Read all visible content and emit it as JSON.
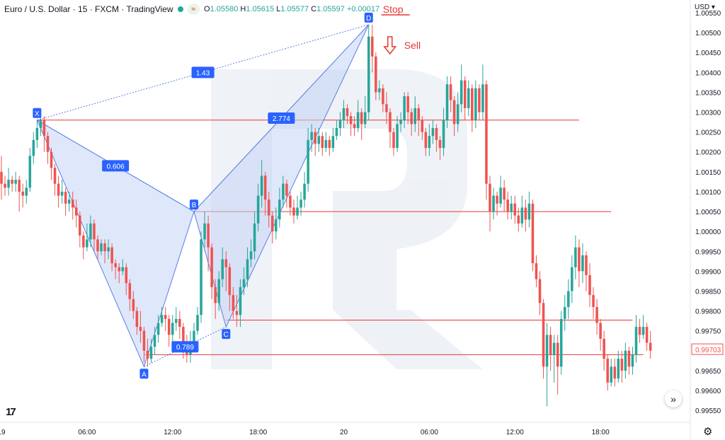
{
  "header": {
    "symbol": "Euro / U.S. Dollar · 15 · FXCM · TradingView",
    "open_label": "O",
    "open": "1.05580",
    "high_label": "H",
    "high": "1.05615",
    "low_label": "L",
    "low": "1.05577",
    "close_label": "C",
    "close": "1.05597",
    "change": "+0.00017"
  },
  "currency_menu": "USD ▾",
  "colors": {
    "up": "#26a69a",
    "down": "#ef5350",
    "pattern_fill": "#c5d3f5",
    "pattern_stroke": "#5a7fe6",
    "label_bg": "#2962ff",
    "level_line": "#e53935",
    "price_tag": "#ef5350"
  },
  "icons": {
    "logo": "tradingview-logo-icon",
    "jump": "jump-to-realtime-icon",
    "settings": "gear-icon",
    "sell_arrow": "arrow-down-icon"
  },
  "chart_data": {
    "type": "candlestick",
    "y_axis": {
      "ylim": [
        0.9952,
        1.0055
      ],
      "ticks": [
        "1.00550",
        "1.00500",
        "1.00450",
        "1.00400",
        "1.00350",
        "1.00300",
        "1.00250",
        "1.00200",
        "1.00150",
        "1.00100",
        "1.00050",
        "1.00000",
        "0.99950",
        "0.99900",
        "0.99850",
        "0.99800",
        "0.99750",
        "0.99700",
        "0.99650",
        "0.99600",
        "0.99550"
      ],
      "last_price": "0.99703"
    },
    "x_axis": {
      "ticks": [
        {
          "label": "19",
          "t": 0
        },
        {
          "label": "06:00",
          "t": 24
        },
        {
          "label": "12:00",
          "t": 48
        },
        {
          "label": "18:00",
          "t": 72
        },
        {
          "label": "20",
          "t": 96
        },
        {
          "label": "06:00",
          "t": 120
        },
        {
          "label": "12:00",
          "t": 144
        },
        {
          "label": "18:00",
          "t": 168
        }
      ],
      "range": [
        0,
        192
      ]
    },
    "candles": [
      [
        1.0015,
        1.0012,
        1.0019,
        1.0008
      ],
      [
        1.0012,
        1.0011,
        1.0014,
        1.0009
      ],
      [
        1.0011,
        1.0013,
        1.0016,
        1.0009
      ],
      [
        1.0013,
        1.0012,
        1.0014,
        1.001
      ],
      [
        1.0012,
        1.0013,
        1.0015,
        1.001
      ],
      [
        1.0013,
        1.001,
        1.0014,
        1.0005
      ],
      [
        1.001,
        1.0009,
        1.0012,
        1.0006
      ],
      [
        1.0009,
        1.0011,
        1.0013,
        1.0007
      ],
      [
        1.0011,
        1.0019,
        1.0021,
        1.001
      ],
      [
        1.0019,
        1.0023,
        1.0025,
        1.0017
      ],
      [
        1.0023,
        1.0026,
        1.0028,
        1.0021
      ],
      [
        1.0026,
        1.0028,
        1.0029,
        1.0024
      ],
      [
        1.0028,
        1.0024,
        1.0029,
        1.002
      ],
      [
        1.0024,
        1.002,
        1.0025,
        1.0017
      ],
      [
        1.002,
        1.0016,
        1.0021,
        1.0013
      ],
      [
        1.0016,
        1.0012,
        1.0017,
        1.0009
      ],
      [
        1.0012,
        1.0009,
        1.0014,
        1.0006
      ],
      [
        1.0009,
        1.001,
        1.0013,
        1.0007
      ],
      [
        1.001,
        1.0007,
        1.0011,
        1.0004
      ],
      [
        1.0007,
        1.0008,
        1.001,
        1.0005
      ],
      [
        1.0008,
        1.0006,
        1.001,
        1.0003
      ],
      [
        1.0006,
        1.0004,
        1.0008,
        1.0001
      ],
      [
        1.0004,
        0.9999,
        1.0005,
        0.9996
      ],
      [
        0.9999,
        0.9996,
        1.0,
        0.9993
      ],
      [
        0.9996,
        0.9998,
        1.0002,
        0.9995
      ],
      [
        0.9998,
        1.0002,
        1.0004,
        0.9996
      ],
      [
        1.0002,
        0.9998,
        1.0003,
        0.9995
      ],
      [
        0.9998,
        0.9995,
        0.9999,
        0.9993
      ],
      [
        0.9995,
        0.9997,
        0.9998,
        0.9994
      ],
      [
        0.9997,
        0.9995,
        0.9998,
        0.9992
      ],
      [
        0.9995,
        0.9996,
        0.9998,
        0.9993
      ],
      [
        0.9996,
        0.9992,
        0.9997,
        0.999
      ],
      [
        0.9992,
        0.9991,
        0.9993,
        0.9988
      ],
      [
        0.9991,
        0.999,
        0.9992,
        0.9987
      ],
      [
        0.999,
        0.9991,
        0.9993,
        0.9989
      ],
      [
        0.9991,
        0.9987,
        0.9992,
        0.9984
      ],
      [
        0.9987,
        0.9983,
        0.9988,
        0.998
      ],
      [
        0.9983,
        0.998,
        0.9985,
        0.9978
      ],
      [
        0.998,
        0.9976,
        0.9981,
        0.9974
      ],
      [
        0.9976,
        0.9975,
        0.998,
        0.9972
      ],
      [
        0.9975,
        0.997,
        0.9976,
        0.9967
      ],
      [
        0.997,
        0.9968,
        0.9973,
        0.9966
      ],
      [
        0.9968,
        0.9971,
        0.9973,
        0.9967
      ],
      [
        0.9971,
        0.9974,
        0.9976,
        0.9969
      ],
      [
        0.9974,
        0.9977,
        0.9979,
        0.9972
      ],
      [
        0.9977,
        0.9979,
        0.9981,
        0.9976
      ],
      [
        0.9979,
        0.9978,
        0.9981,
        0.9975
      ],
      [
        0.9978,
        0.9974,
        0.9979,
        0.9971
      ],
      [
        0.9974,
        0.9977,
        0.9979,
        0.9972
      ],
      [
        0.9977,
        0.9978,
        0.9981,
        0.9975
      ],
      [
        0.9978,
        0.9976,
        0.998,
        0.9973
      ],
      [
        0.9976,
        0.9971,
        0.9977,
        0.9968
      ],
      [
        0.9971,
        0.9969,
        0.9974,
        0.9967
      ],
      [
        0.9969,
        0.9972,
        0.9975,
        0.9967
      ],
      [
        0.9972,
        0.9975,
        0.9977,
        0.997
      ],
      [
        0.9975,
        0.9979,
        0.9981,
        0.9974
      ],
      [
        0.9979,
        0.9998,
        1.0,
        0.9977
      ],
      [
        0.9998,
        1.0002,
        1.0005,
        0.9996
      ],
      [
        1.0002,
        0.9996,
        1.0004,
        0.999
      ],
      [
        0.9996,
        0.9986,
        0.9997,
        0.9983
      ],
      [
        0.9986,
        0.9982,
        0.9988,
        0.9978
      ],
      [
        0.9982,
        0.9988,
        0.999,
        0.998
      ],
      [
        0.9988,
        0.9993,
        0.9996,
        0.9986
      ],
      [
        0.9993,
        0.9991,
        0.9995,
        0.9985
      ],
      [
        0.9991,
        0.9984,
        0.9992,
        0.998
      ],
      [
        0.9984,
        0.998,
        0.9986,
        0.9978
      ],
      [
        0.998,
        0.9979,
        0.9984,
        0.9976
      ],
      [
        0.9979,
        0.9986,
        0.9988,
        0.9976
      ],
      [
        0.9986,
        0.9988,
        0.9991,
        0.9984
      ],
      [
        0.9988,
        0.9993,
        0.9996,
        0.9986
      ],
      [
        0.9993,
        0.9995,
        0.9998,
        0.9991
      ],
      [
        0.9995,
        1.0002,
        1.0005,
        0.9993
      ],
      [
        1.0002,
        1.0009,
        1.0012,
        1.0
      ],
      [
        1.0009,
        1.0014,
        1.0018,
        1.0006
      ],
      [
        1.0014,
        1.0008,
        1.0015,
        1.0004
      ],
      [
        1.0008,
        1.0004,
        1.001,
        1.0001
      ],
      [
        1.0004,
        1.0,
        1.0005,
        0.9997
      ],
      [
        1.0,
        1.0003,
        1.0006,
        0.9998
      ],
      [
        1.0003,
        1.0008,
        1.0011,
        1.0001
      ],
      [
        1.0008,
        1.0012,
        1.0014,
        1.0006
      ],
      [
        1.0012,
        1.0009,
        1.0013,
        1.0006
      ],
      [
        1.0009,
        1.0006,
        1.001,
        1.0004
      ],
      [
        1.0006,
        1.0004,
        1.0008,
        1.0002
      ],
      [
        1.0004,
        1.0006,
        1.0009,
        1.0003
      ],
      [
        1.0006,
        1.0008,
        1.001,
        1.0004
      ],
      [
        1.0008,
        1.0012,
        1.0015,
        1.0006
      ],
      [
        1.0012,
        1.0023,
        1.0026,
        1.001
      ],
      [
        1.0023,
        1.0025,
        1.0027,
        1.002
      ],
      [
        1.0025,
        1.0022,
        1.0026,
        1.0019
      ],
      [
        1.0022,
        1.0024,
        1.0026,
        1.002
      ],
      [
        1.0024,
        1.0021,
        1.0025,
        1.0019
      ],
      [
        1.0021,
        1.0023,
        1.0025,
        1.002
      ],
      [
        1.0023,
        1.0021,
        1.0024,
        1.0019
      ],
      [
        1.0021,
        1.0024,
        1.0026,
        1.002
      ],
      [
        1.0024,
        1.0026,
        1.0028,
        1.0023
      ],
      [
        1.0026,
        1.0028,
        1.003,
        1.0024
      ],
      [
        1.0028,
        1.0031,
        1.0033,
        1.0026
      ],
      [
        1.0031,
        1.0029,
        1.0032,
        1.0027
      ],
      [
        1.0029,
        1.0027,
        1.003,
        1.0024
      ],
      [
        1.0027,
        1.0026,
        1.0029,
        1.0024
      ],
      [
        1.0026,
        1.003,
        1.0033,
        1.0025
      ],
      [
        1.003,
        1.0027,
        1.0031,
        1.0023
      ],
      [
        1.0027,
        1.003,
        1.0034,
        1.0026
      ],
      [
        1.003,
        1.0049,
        1.0052,
        1.0028
      ],
      [
        1.0049,
        1.0044,
        1.0052,
        1.004
      ],
      [
        1.0044,
        1.0035,
        1.0045,
        1.0033
      ],
      [
        1.0035,
        1.0036,
        1.0038,
        1.0033
      ],
      [
        1.0036,
        1.0032,
        1.0037,
        1.003
      ],
      [
        1.0032,
        1.003,
        1.0035,
        1.0027
      ],
      [
        1.003,
        1.0025,
        1.0031,
        1.0021
      ],
      [
        1.0025,
        1.0021,
        1.0026,
        1.0019
      ],
      [
        1.0021,
        1.0027,
        1.0029,
        1.002
      ],
      [
        1.0027,
        1.0028,
        1.003,
        1.0025
      ],
      [
        1.0028,
        1.0034,
        1.0035,
        1.0026
      ],
      [
        1.0034,
        1.003,
        1.0035,
        1.0027
      ],
      [
        1.003,
        1.0027,
        1.0031,
        1.0024
      ],
      [
        1.0027,
        1.0031,
        1.0034,
        1.0025
      ],
      [
        1.0031,
        1.0028,
        1.0032,
        1.0024
      ],
      [
        1.0028,
        1.0025,
        1.0029,
        1.0023
      ],
      [
        1.0025,
        1.0021,
        1.0026,
        1.0019
      ],
      [
        1.0021,
        1.0024,
        1.0027,
        1.0019
      ],
      [
        1.0024,
        1.0026,
        1.0028,
        1.0022
      ],
      [
        1.0026,
        1.0023,
        1.0027,
        1.002
      ],
      [
        1.0023,
        1.0021,
        1.0024,
        1.0018
      ],
      [
        1.0021,
        1.0028,
        1.0031,
        1.0019
      ],
      [
        1.0028,
        1.0037,
        1.0039,
        1.0026
      ],
      [
        1.0037,
        1.0033,
        1.0039,
        1.003
      ],
      [
        1.0033,
        1.0027,
        1.0034,
        1.0024
      ],
      [
        1.0027,
        1.0032,
        1.0035,
        1.0025
      ],
      [
        1.0032,
        1.0038,
        1.0042,
        1.003
      ],
      [
        1.0038,
        1.0031,
        1.0039,
        1.0028
      ],
      [
        1.0031,
        1.0036,
        1.0038,
        1.0029
      ],
      [
        1.0036,
        1.0028,
        1.0037,
        1.0025
      ],
      [
        1.0028,
        1.0036,
        1.0038,
        1.0026
      ],
      [
        1.0036,
        1.003,
        1.0037,
        1.0028
      ],
      [
        1.003,
        1.0037,
        1.0042,
        1.0028
      ],
      [
        1.0037,
        1.0012,
        1.0038,
        1.0008
      ],
      [
        1.0012,
        1.0005,
        1.0014,
        1.0
      ],
      [
        1.0005,
        1.0009,
        1.0011,
        1.0003
      ],
      [
        1.0009,
        1.0007,
        1.001,
        1.0004
      ],
      [
        1.0007,
        1.0011,
        1.0014,
        1.0006
      ],
      [
        1.0011,
        1.0008,
        1.0013,
        1.0005
      ],
      [
        1.0008,
        1.0005,
        1.001,
        1.0003
      ],
      [
        1.0005,
        1.0007,
        1.0009,
        1.0003
      ],
      [
        1.0007,
        1.0004,
        1.0009,
        1.0002
      ],
      [
        1.0004,
        1.0002,
        1.0006,
        1.0
      ],
      [
        1.0002,
        1.0006,
        1.0009,
        1.0001
      ],
      [
        1.0006,
        1.0003,
        1.0008,
        1.0
      ],
      [
        1.0003,
        1.0007,
        1.001,
        1.0001
      ],
      [
        1.0007,
        0.9992,
        1.0008,
        0.999
      ],
      [
        0.9992,
        0.9988,
        0.9994,
        0.9986
      ],
      [
        0.9988,
        0.9982,
        0.999,
        0.9979
      ],
      [
        0.9982,
        0.9966,
        0.9983,
        0.9963
      ],
      [
        0.9966,
        0.9974,
        0.9977,
        0.9956
      ],
      [
        0.9974,
        0.9969,
        0.9976,
        0.9965
      ],
      [
        0.9969,
        0.9972,
        0.9974,
        0.9962
      ],
      [
        0.9972,
        0.9966,
        0.9974,
        0.9959
      ],
      [
        0.9966,
        0.9978,
        0.998,
        0.9964
      ],
      [
        0.9978,
        0.9981,
        0.9984,
        0.9975
      ],
      [
        0.9981,
        0.9985,
        0.9988,
        0.9978
      ],
      [
        0.9985,
        0.9991,
        0.9994,
        0.9982
      ],
      [
        0.9991,
        0.9996,
        0.9999,
        0.9988
      ],
      [
        0.9996,
        0.999,
        0.9998,
        0.9986
      ],
      [
        0.999,
        0.9994,
        0.9997,
        0.9987
      ],
      [
        0.9994,
        0.9989,
        0.9995,
        0.9985
      ],
      [
        0.9989,
        0.9984,
        0.9992,
        0.9981
      ],
      [
        0.9984,
        0.9981,
        0.9986,
        0.9978
      ],
      [
        0.9981,
        0.9977,
        0.9983,
        0.9974
      ],
      [
        0.9977,
        0.9973,
        0.9978,
        0.997
      ],
      [
        0.9973,
        0.9968,
        0.9975,
        0.9965
      ],
      [
        0.9968,
        0.9962,
        0.9969,
        0.996
      ],
      [
        0.9962,
        0.9966,
        0.9968,
        0.9961
      ],
      [
        0.9966,
        0.9963,
        0.9968,
        0.9961
      ],
      [
        0.9963,
        0.9968,
        0.997,
        0.9962
      ],
      [
        0.9968,
        0.9965,
        0.997,
        0.9962
      ],
      [
        0.9965,
        0.997,
        0.9972,
        0.9963
      ],
      [
        0.997,
        0.9966,
        0.9971,
        0.9964
      ],
      [
        0.9966,
        0.9969,
        0.9971,
        0.9964
      ],
      [
        0.9969,
        0.9976,
        0.9979,
        0.9967
      ],
      [
        0.9976,
        0.9974,
        0.9978,
        0.9972
      ],
      [
        0.9974,
        0.9976,
        0.9979,
        0.9973
      ],
      [
        0.9976,
        0.9972,
        0.9977,
        0.997
      ],
      [
        0.9972,
        0.997,
        0.9975,
        0.9968
      ]
    ],
    "pattern": {
      "points": [
        {
          "label": "X",
          "t": 10,
          "price": 1.0028
        },
        {
          "label": "A",
          "t": 40,
          "price": 0.9966
        },
        {
          "label": "B",
          "t": 54,
          "price": 1.0005
        },
        {
          "label": "C",
          "t": 63,
          "price": 0.9976
        },
        {
          "label": "D",
          "t": 103,
          "price": 1.0052
        }
      ],
      "ratios": [
        {
          "value": "0.606",
          "from": "X",
          "to": "B"
        },
        {
          "value": "0.789",
          "from": "A",
          "to": "C"
        },
        {
          "value": "1.43",
          "from": "X",
          "to": "D"
        },
        {
          "value": "2.774",
          "from": "B",
          "to": "D"
        }
      ]
    },
    "levels": [
      {
        "price": 1.0028,
        "from_t": 10,
        "to_t": 162
      },
      {
        "price": 1.0005,
        "from_t": 54,
        "to_t": 171
      },
      {
        "price": 0.99777,
        "from_t": 63,
        "to_t": 177
      },
      {
        "price": 0.9969,
        "from_t": 40,
        "to_t": 180
      }
    ],
    "annotations": {
      "stop": "Stop",
      "sell": "Sell"
    }
  }
}
